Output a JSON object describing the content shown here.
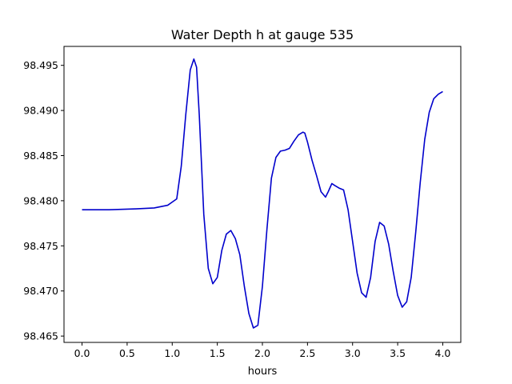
{
  "chart_data": {
    "type": "line",
    "title": "Water Depth h at gauge 535",
    "xlabel": "hours",
    "ylabel": "",
    "xlim": [
      -0.2,
      4.2
    ],
    "ylim": [
      98.4643,
      98.4971
    ],
    "xticks": [
      "0.0",
      "0.5",
      "1.0",
      "1.5",
      "2.0",
      "2.5",
      "3.0",
      "3.5",
      "4.0"
    ],
    "yticks": [
      "98.465",
      "98.470",
      "98.475",
      "98.480",
      "98.485",
      "98.490",
      "98.495"
    ],
    "grid": false,
    "legend": "none",
    "colors": {
      "line": "#0000cc",
      "axes": "#000000",
      "background": "#ffffff"
    },
    "series": [
      {
        "name": "",
        "x": [
          0.0,
          0.3,
          0.6,
          0.8,
          0.95,
          1.05,
          1.1,
          1.15,
          1.2,
          1.24,
          1.27,
          1.3,
          1.35,
          1.4,
          1.45,
          1.5,
          1.55,
          1.6,
          1.65,
          1.7,
          1.75,
          1.8,
          1.85,
          1.9,
          1.95,
          2.0,
          2.05,
          2.1,
          2.15,
          2.2,
          2.25,
          2.3,
          2.35,
          2.4,
          2.45,
          2.47,
          2.5,
          2.55,
          2.6,
          2.65,
          2.7,
          2.73,
          2.77,
          2.8,
          2.85,
          2.9,
          2.95,
          3.0,
          3.05,
          3.1,
          3.15,
          3.2,
          3.25,
          3.3,
          3.35,
          3.4,
          3.45,
          3.5,
          3.55,
          3.6,
          3.65,
          3.7,
          3.75,
          3.8,
          3.85,
          3.9,
          3.95,
          4.0
        ],
        "y": [
          98.479,
          98.479,
          98.4791,
          98.4792,
          98.4795,
          98.4802,
          98.4838,
          98.4895,
          98.4945,
          98.4957,
          98.4948,
          98.4895,
          98.4785,
          98.4725,
          98.4708,
          98.4715,
          98.4745,
          98.4763,
          98.4767,
          98.4758,
          98.474,
          98.4705,
          98.4675,
          98.4659,
          98.4662,
          98.4705,
          98.4768,
          98.4825,
          98.4848,
          98.4855,
          98.4856,
          98.4858,
          98.4866,
          98.4873,
          98.4876,
          98.4875,
          98.4865,
          98.4845,
          98.4828,
          98.481,
          98.4804,
          98.481,
          98.4819,
          98.4817,
          98.4814,
          98.4812,
          98.479,
          98.4755,
          98.472,
          98.4698,
          98.4693,
          98.4715,
          98.4755,
          98.4776,
          98.4772,
          98.4752,
          98.4722,
          98.4695,
          98.4682,
          98.4688,
          98.4715,
          98.4765,
          98.482,
          98.4868,
          98.4898,
          98.4913,
          98.4918,
          98.4921
        ]
      }
    ]
  }
}
